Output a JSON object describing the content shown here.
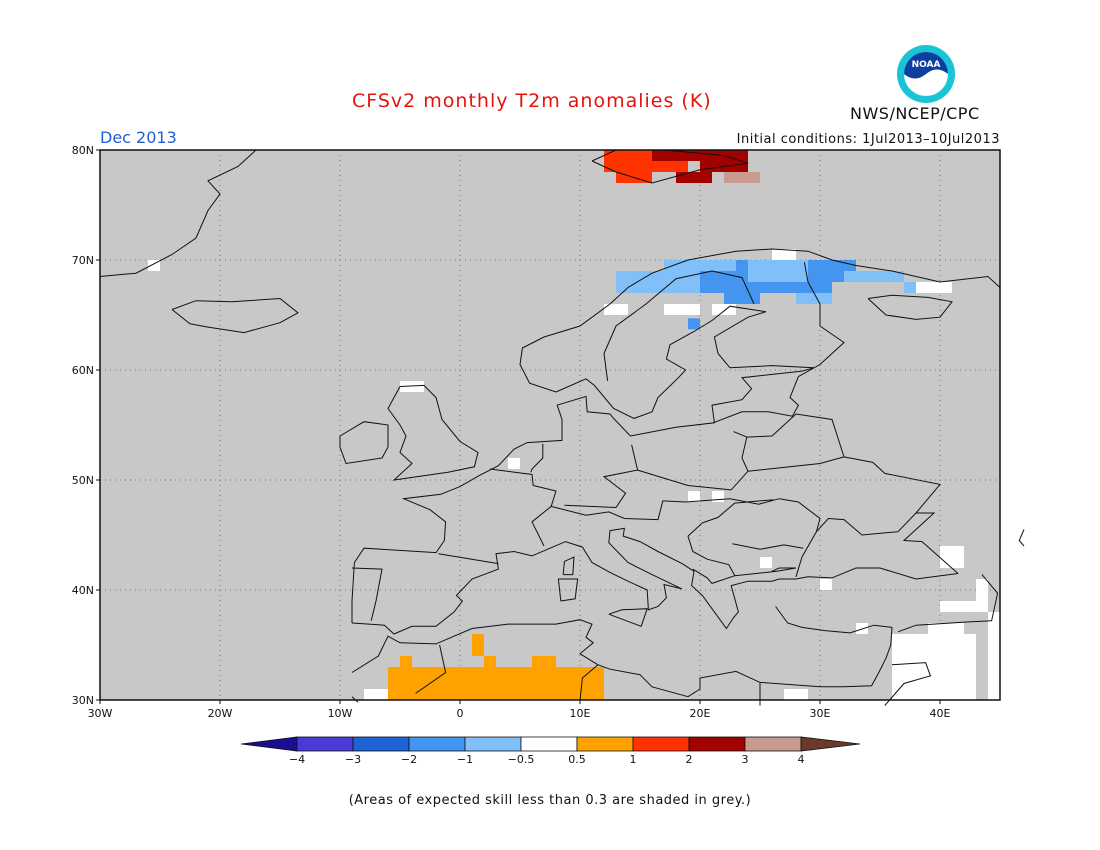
{
  "header": {
    "title": "CFSv2 monthly T2m anomalies (K)",
    "month": "Dec 2013",
    "initial_conditions": "Initial conditions: 1Jul2013–10Jul2013",
    "agency": "NWS/NCEP/CPC",
    "logo_text": "NOAA"
  },
  "map": {
    "region": "Europe",
    "lon_range": [
      -30,
      45
    ],
    "lat_range": [
      30,
      80
    ],
    "lon_ticks": [
      "30W",
      "20W",
      "10W",
      "0",
      "10E",
      "20E",
      "30E",
      "40E"
    ],
    "lat_ticks": [
      "30N",
      "40N",
      "50N",
      "60N",
      "70N",
      "80N"
    ],
    "background_color": "#c8c8c8",
    "gridlines": true
  },
  "legend": {
    "colors": [
      "#1a0d91",
      "#4a3bd6",
      "#1e64d6",
      "#4495ef",
      "#80bff7",
      "#ffffff",
      "#ffa200",
      "#ff3200",
      "#a30000",
      "#c99a8e",
      "#6b3a2a"
    ],
    "labels": [
      "−4",
      "−3",
      "−2",
      "−1",
      "−0.5",
      "0.5",
      "1",
      "2",
      "3",
      "4"
    ]
  },
  "footnote": "(Areas of expected skill less than 0.3 are shaded in grey.)"
}
